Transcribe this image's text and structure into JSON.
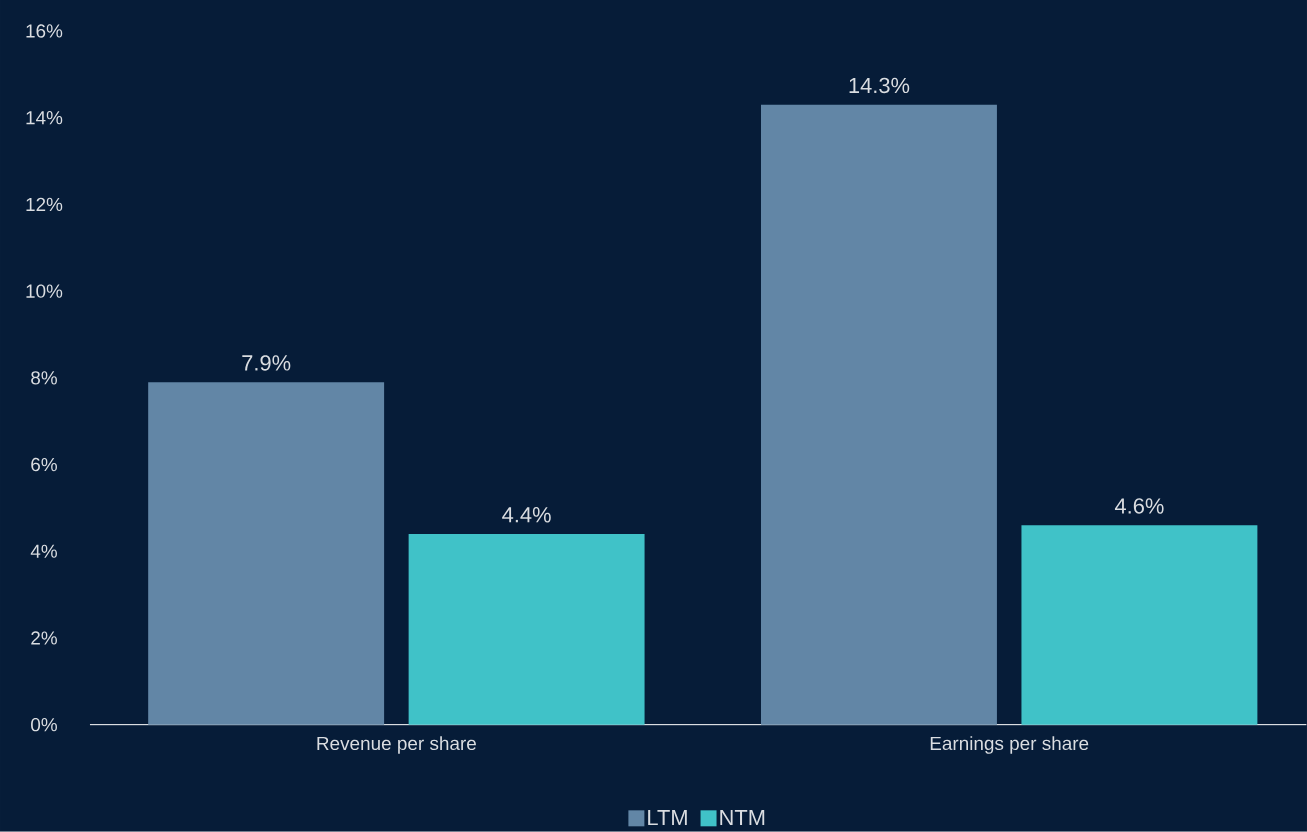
{
  "chart_data": {
    "type": "bar",
    "categories": [
      "Revenue per share",
      "Earnings per share"
    ],
    "series": [
      {
        "name": "LTM",
        "color": "#6286a6",
        "values": [
          7.9,
          14.3
        ],
        "value_labels": [
          "7.9%",
          "14.3%"
        ]
      },
      {
        "name": "NTM",
        "color": "#40c2c8",
        "values": [
          4.4,
          4.6
        ],
        "value_labels": [
          "4.4%",
          "4.6%"
        ]
      }
    ],
    "ylim": [
      0,
      16
    ],
    "yticks": [
      {
        "value": 0,
        "label": "0%"
      },
      {
        "value": 2,
        "label": "2%"
      },
      {
        "value": 4,
        "label": "4%"
      },
      {
        "value": 6,
        "label": "6%"
      },
      {
        "value": 8,
        "label": "8%"
      },
      {
        "value": 10,
        "label": "10%"
      },
      {
        "value": 12,
        "label": "12%"
      },
      {
        "value": 14,
        "label": "14%"
      },
      {
        "value": 16,
        "label": "16%"
      }
    ],
    "grid": false,
    "legend": "bottom"
  }
}
